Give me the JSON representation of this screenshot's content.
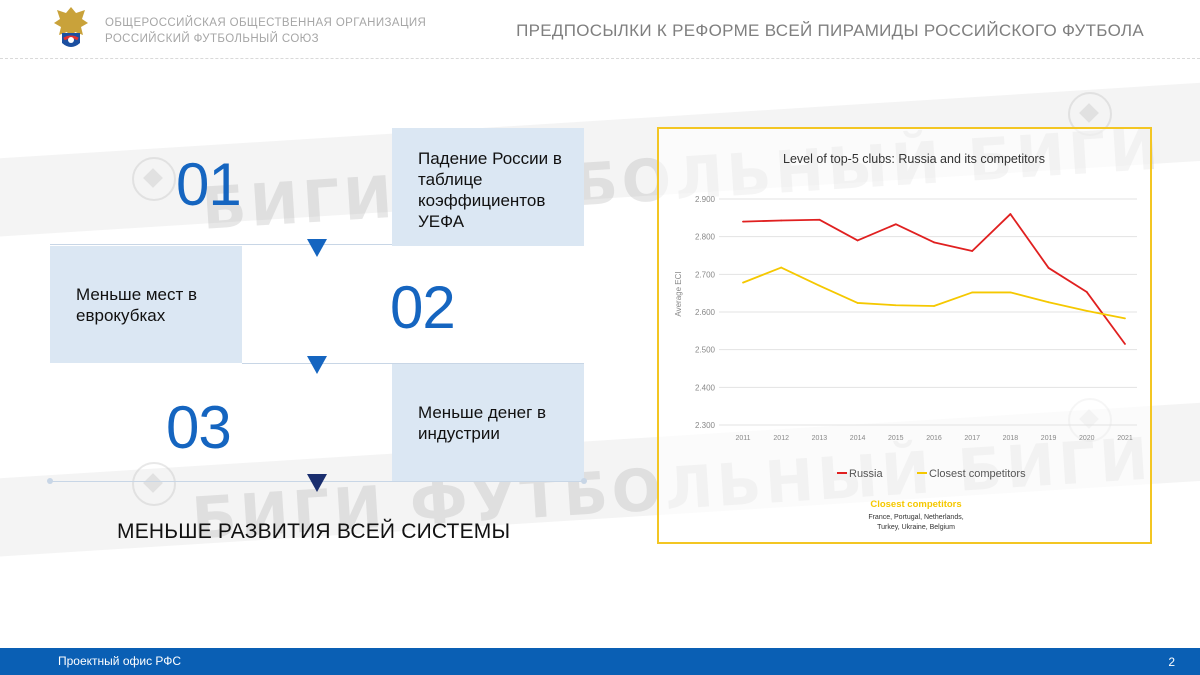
{
  "header": {
    "org_line1": "ОБЩЕРОССИЙСКАЯ ОБЩЕСТВЕННАЯ ОРГАНИЗАЦИЯ",
    "org_line2": "РОССИЙСКИЙ ФУТБОЛЬНЫЙ СОЮЗ",
    "title": "ПРЕДПОСЫЛКИ К РЕФОРМЕ ВСЕЙ ПИРАМИДЫ РОССИЙСКОГО ФУТБОЛА"
  },
  "watermark": "БИГИ ФУТБОЛЬНЫЙ БИГИ",
  "steps": [
    {
      "number": "01",
      "text": "Падение России в таблице коэффициентов УЕФА"
    },
    {
      "number": "02",
      "text": "Меньше мест в еврокубках"
    },
    {
      "number": "03",
      "text": "Меньше денег в индустрии"
    }
  ],
  "conclusion": "МЕНЬШЕ РАЗВИТИЯ ВСЕЙ СИСТЕМЫ",
  "chart_data": {
    "type": "line",
    "title": "Level of top-5 clubs: Russia and its competitors",
    "ylabel": "Average ECI",
    "xlabel": "",
    "x": [
      "2011",
      "2012",
      "2013",
      "2014",
      "2015",
      "2016",
      "2017",
      "2018",
      "2019",
      "2020",
      "2021"
    ],
    "ylim": [
      2.3,
      2.9
    ],
    "yticks": [
      "2.900",
      "2.800",
      "2.700",
      "2.600",
      "2.500",
      "2.400",
      "2.300"
    ],
    "grid": true,
    "legend_position": "bottom",
    "series": [
      {
        "name": "Russia",
        "color": "#e02020",
        "values": [
          2.84,
          2.843,
          2.845,
          2.79,
          2.833,
          2.785,
          2.762,
          2.86,
          2.717,
          2.653,
          2.515
        ]
      },
      {
        "name": "Closest competitors",
        "color": "#f5c800",
        "values": [
          2.678,
          2.718,
          2.67,
          2.624,
          2.618,
          2.616,
          2.652,
          2.652,
          2.626,
          2.603,
          2.583
        ]
      }
    ],
    "note_title": "Closest competitors",
    "note_text_line1": "France, Portugal, Netherlands,",
    "note_text_line2": "Turkey, Ukraine, Belgium"
  },
  "footer": {
    "text": "Проектный офис РФС",
    "page": "2"
  },
  "colors": {
    "accent_blue": "#1565c0",
    "box_bg": "#dbe7f3",
    "chart_border": "#f3c623",
    "footer_bg": "#0a5fb4"
  }
}
